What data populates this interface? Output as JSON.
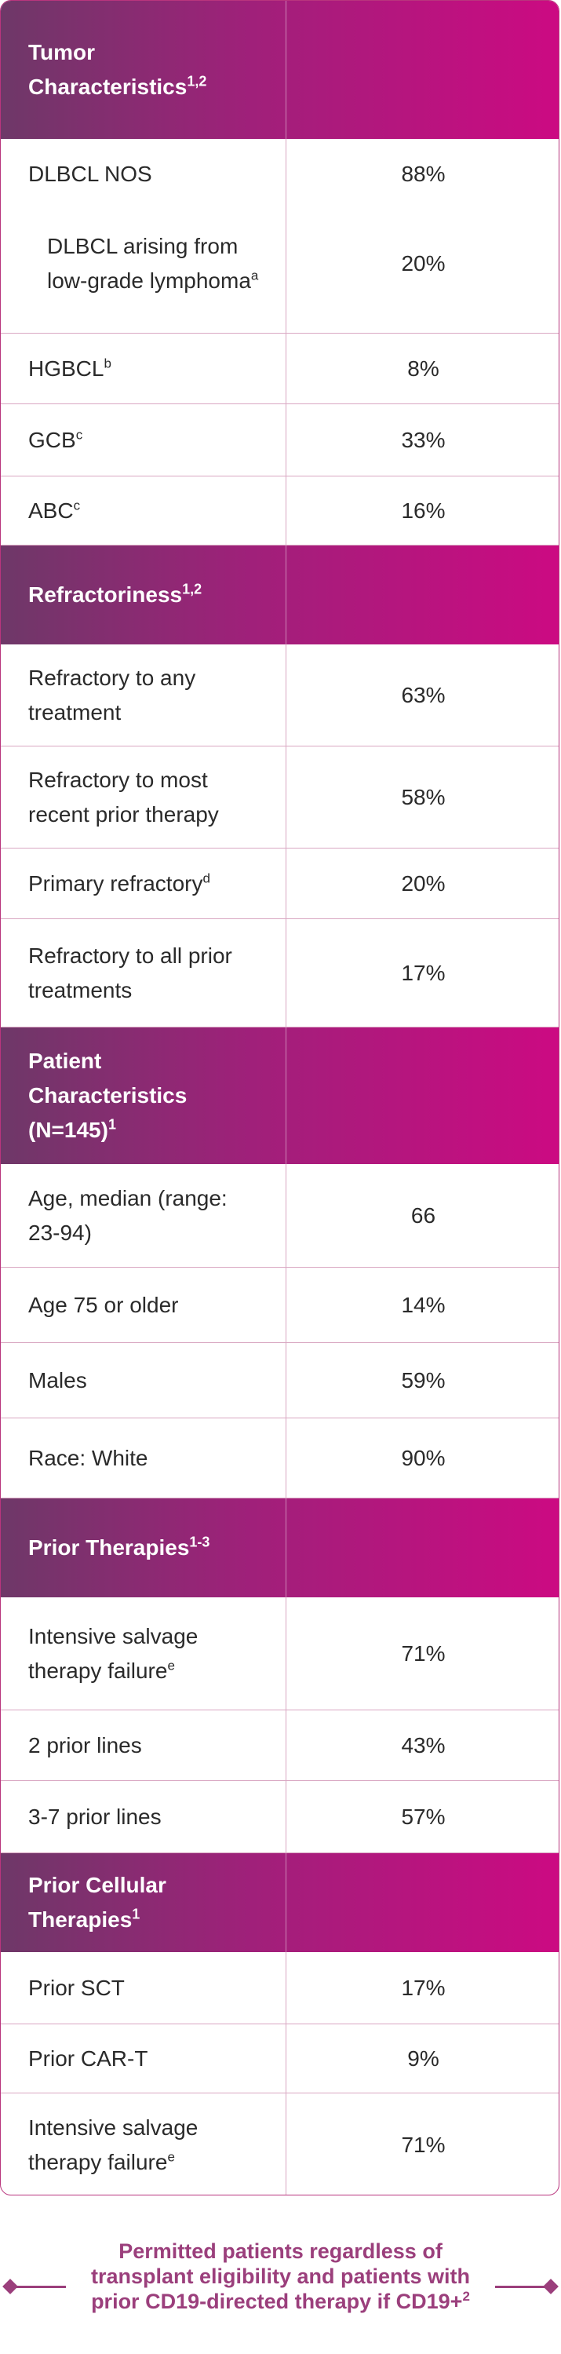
{
  "sections": {
    "tumor": {
      "title": "Tumor Characteristics",
      "sup": "1,2",
      "rows": [
        {
          "label": "DLBCL NOS",
          "value": "88%"
        },
        {
          "label": "DLBCL arising from low-grade lymphoma",
          "sup": "a",
          "value": "20%"
        },
        {
          "label": "HGBCL",
          "sup": "b",
          "value": "8%"
        },
        {
          "label": "GCB",
          "sup": "c",
          "value": "33%"
        },
        {
          "label": "ABC",
          "sup": "c",
          "value": "16%"
        }
      ]
    },
    "refractoriness": {
      "title": "Refractoriness",
      "sup": "1,2",
      "rows": [
        {
          "label": "Refractory to any treatment",
          "value": "63%"
        },
        {
          "label": "Refractory to most recent prior therapy",
          "value": "58%"
        },
        {
          "label": "Primary refractory",
          "sup": "d",
          "value": "20%"
        },
        {
          "label": "Refractory to all prior treatments",
          "value": "17%"
        }
      ]
    },
    "patient": {
      "title": "Patient Characteristics (N=145)",
      "sup": "1",
      "rows": [
        {
          "label": "Age, median (range: 23-94)",
          "value": "66"
        },
        {
          "label": "Age 75 or older",
          "value": "14%"
        },
        {
          "label": "Males",
          "value": "59%"
        },
        {
          "label": "Race: White",
          "value": "90%"
        }
      ]
    },
    "prior_therapies": {
      "title": "Prior Therapies",
      "sup": "1-3",
      "rows": [
        {
          "label": "Intensive salvage therapy failure",
          "sup": "e",
          "value": "71%"
        },
        {
          "label": "2 prior lines",
          "value": "43%"
        },
        {
          "label": "3-7 prior lines",
          "value": "57%"
        }
      ]
    },
    "prior_cellular": {
      "title": "Prior Cellular Therapies",
      "sup": "1",
      "rows": [
        {
          "label": "Prior SCT",
          "value": "17%"
        },
        {
          "label": "Prior CAR-T",
          "value": "9%"
        },
        {
          "label": "Intensive salvage therapy failure",
          "sup": "e",
          "value": "71%"
        }
      ]
    }
  },
  "footnote": {
    "text": "Permitted patients regardless of transplant eligibility and patients with prior CD19-directed therapy if CD19+",
    "sup": "2"
  },
  "colors": {
    "header_start": "#6e3868",
    "header_end": "#cc0a82",
    "accent": "#9b3f7c",
    "border": "#b9357d"
  }
}
